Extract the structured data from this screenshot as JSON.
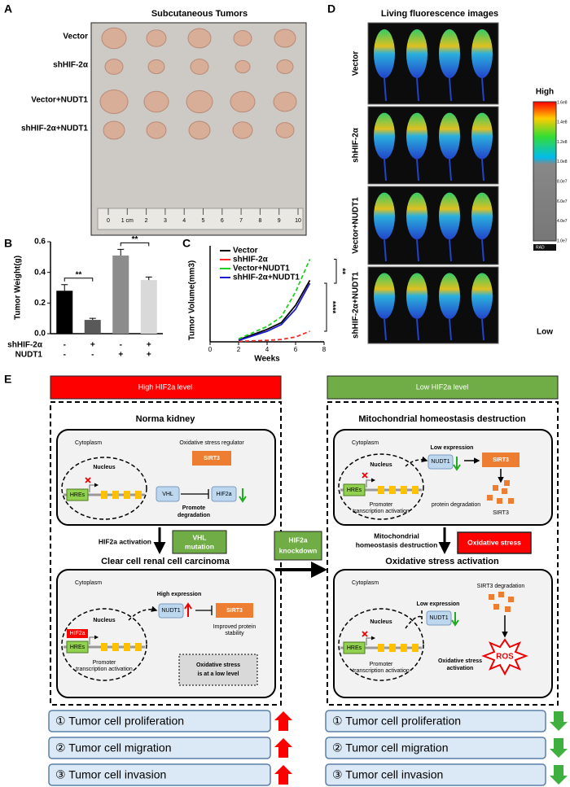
{
  "panel_a": {
    "label": "A",
    "title": "Subcutaneous Tumors",
    "rows": [
      "Vector",
      "shHIF-2α",
      "Vector+NUDT1",
      "shHIF-2α+NUDT1"
    ],
    "ruler": [
      "0",
      "1 cm",
      "2",
      "3",
      "4",
      "5",
      "6",
      "7",
      "8",
      "9",
      "10"
    ]
  },
  "panel_d": {
    "label": "D",
    "title": "Living fluorescence images",
    "rows": [
      "Vector",
      "shHIF-2α",
      "Vector+NUDT1",
      "shHIF-2α+NUDT1"
    ],
    "scale_high": "High",
    "scale_low": "Low",
    "scale_ticks": [
      "1.6e8",
      "1.4e8",
      "1.2e8",
      "1.0e8",
      "8.0e7",
      "6.0e7",
      "4.0e7",
      "1.0e7"
    ],
    "scale_unit": "RAD"
  },
  "chart_data": [
    {
      "type": "bar",
      "panel": "B",
      "y_label": "Tumor Weight(g)",
      "categories": [
        null,
        null,
        null,
        null
      ],
      "values": [
        0.28,
        0.09,
        0.51,
        0.35
      ],
      "errors": [
        0.04,
        0.01,
        0.04,
        0.02
      ],
      "colors": [
        "#000000",
        "#595959",
        "#8c8c8c",
        "#d9d9d9"
      ],
      "ylim": [
        0,
        0.6
      ],
      "yticks": [
        {
          "value": 0,
          "label": "0.0"
        },
        0.2,
        0.4,
        0.6
      ],
      "factors": [
        {
          "name": "shHIF-2α",
          "levels": [
            "-",
            "+",
            "-",
            "+"
          ]
        },
        {
          "name": "NUDT1",
          "levels": [
            "-",
            "-",
            "+",
            "+"
          ]
        }
      ],
      "annotations": [
        "**",
        "**"
      ]
    },
    {
      "type": "line",
      "panel": "C",
      "y_label": "Tumor Volume(mm3)",
      "x_label": "Weeks",
      "x": [
        2,
        4,
        5,
        6,
        7
      ],
      "xlim": [
        0,
        8
      ],
      "xticks": [
        0,
        2,
        4,
        6,
        8
      ],
      "ylim": [
        0,
        1000
      ],
      "series": [
        {
          "name": "Vector",
          "color": "#000000",
          "dashed": false,
          "values": [
            20,
            130,
            200,
            380,
            640
          ]
        },
        {
          "name": "shHIF-2α",
          "color": "#ff2a2a",
          "dashed": true,
          "values": [
            5,
            15,
            25,
            50,
            110
          ]
        },
        {
          "name": "Vector+NUDT1",
          "color": "#22cc22",
          "dashed": true,
          "values": [
            30,
            160,
            260,
            520,
            860
          ]
        },
        {
          "name": "shHIF-2α+NUDT1",
          "color": "#1a1acc",
          "dashed": false,
          "values": [
            15,
            110,
            180,
            340,
            610
          ]
        }
      ],
      "annotations": [
        "**",
        "****"
      ]
    }
  ],
  "panel_e": {
    "label": "E",
    "left_header": "High HIF2a level",
    "right_header": "Low HIF2a level",
    "normal": {
      "title": "Norma kidney",
      "cytoplasm": "Cytoplasm",
      "regulator": "Oxidative stress regulator",
      "sirt3": "SIRT3",
      "nucleus": "Nucleus",
      "hres": "HREs",
      "vhl": "VHL",
      "hif2a": "HIF2a",
      "promote": [
        "Promote",
        "degradation"
      ]
    },
    "activation": "HIF2a activation",
    "vhl_mutation": [
      "VHL",
      "mutation"
    ],
    "ccrcc": {
      "title": "Clear cell renal cell carcinoma",
      "cytoplasm": "Cytoplasm",
      "high_expression": "High expression",
      "nudt1": "NUDT1",
      "sirt3": "SIRT3",
      "nucleus": "Nucleus",
      "hif2a": "HIF2a",
      "hres": "HREs",
      "promoter": [
        "Promoter",
        "transcription activation"
      ],
      "stability": [
        "Improved protein",
        "stability"
      ],
      "low_level": [
        "Oxidative stress",
        "is at a low level"
      ]
    },
    "knockdown": [
      "HIF2a",
      "knockdown"
    ],
    "mito": {
      "title": "Mitochondrial homeostasis destruction",
      "cytoplasm": "Cytoplasm",
      "low_expression": "Low expression",
      "sirt3": "SIRT3",
      "nucleus": "Nucleus",
      "nudt1": "NUDT1",
      "hres": "HREs",
      "promoter": [
        "Promoter",
        "transcription activation"
      ],
      "degradation": "protein degradation",
      "sirt3_b": "SIRT3"
    },
    "mito_arrow": [
      "Mitochondrial",
      "homeostasis destruction"
    ],
    "oxidative": "Oxidative stress",
    "ox": {
      "title": "Oxidative stress activation",
      "cytoplasm": "Cytoplasm",
      "sirt3_degradation": "SIRT3 degradation",
      "low_expression": "Low expression",
      "nucleus": "Nucleus",
      "nudt1": "NUDT1",
      "hres": "HREs",
      "promoter": [
        "Promoter",
        "transcription activation"
      ],
      "activation": [
        "Oxidative stress",
        "activation"
      ],
      "ros": "ROS"
    },
    "left_outcomes": [
      "① Tumor cell proliferation",
      "② Tumor cell migration",
      "③ Tumor cell invasion"
    ],
    "right_outcomes": [
      "① Tumor cell proliferation",
      "② Tumor cell migration",
      "③ Tumor cell invasion"
    ]
  }
}
